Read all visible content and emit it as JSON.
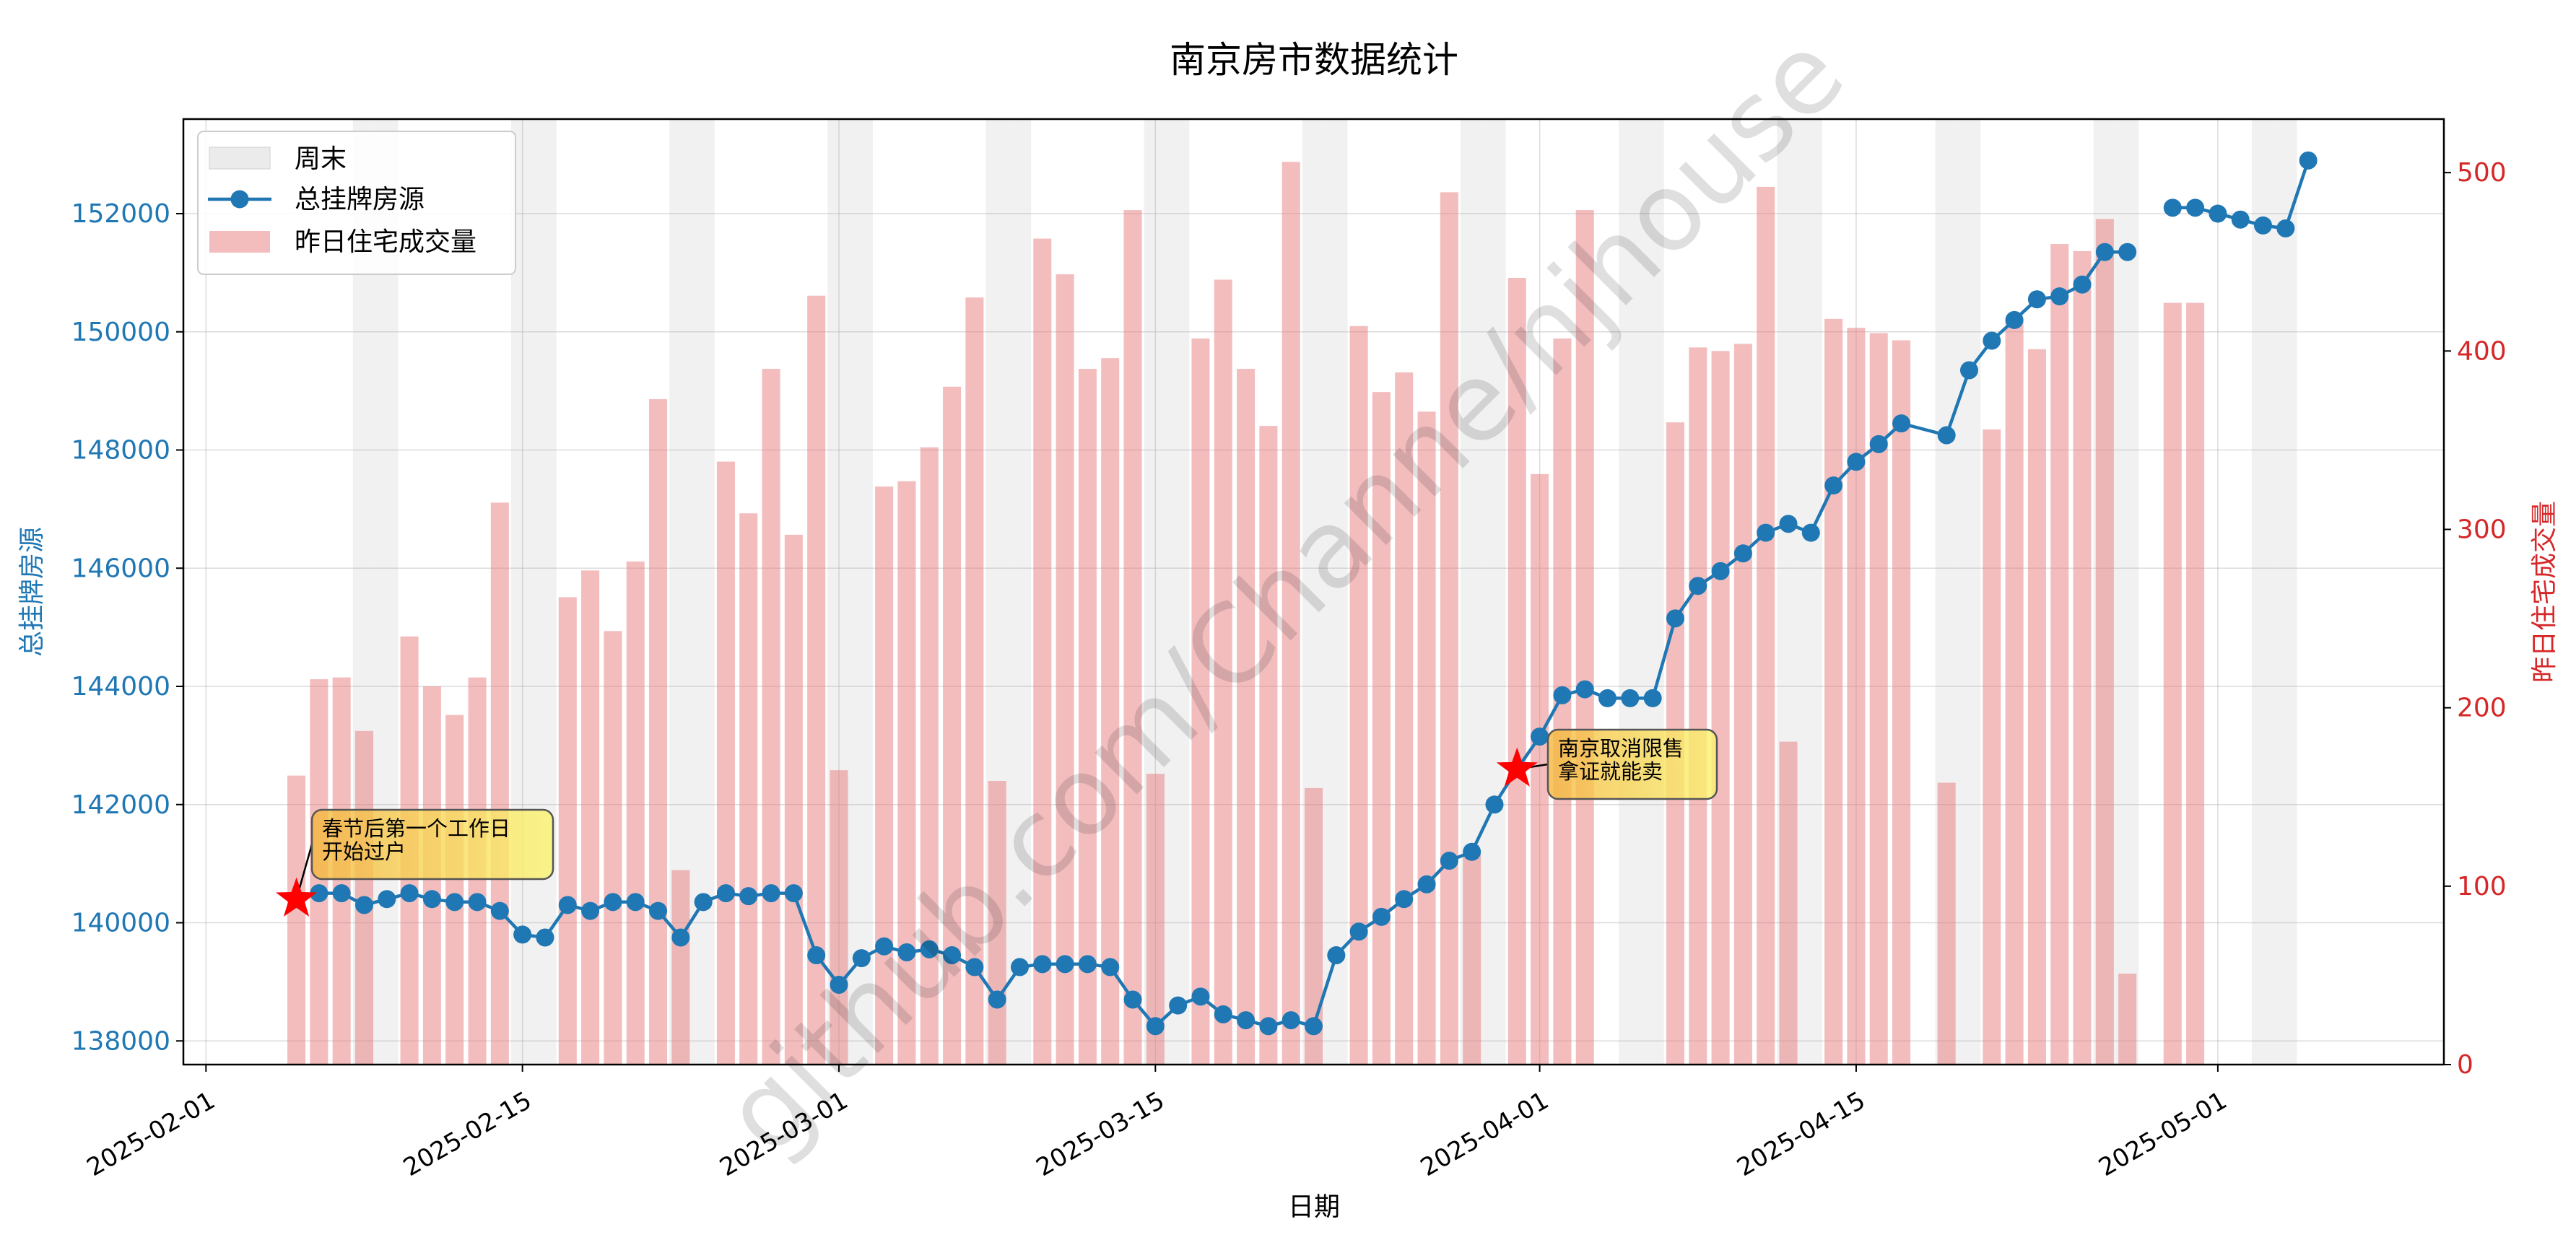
{
  "chart_data": {
    "type": "bar+line",
    "title": "南京房市数据统计",
    "xlabel": "日期",
    "ylabel_left": "总挂牌房源",
    "ylabel_right": "昨日住宅成交量",
    "x_range": [
      "2025-01-31",
      "2025-05-11"
    ],
    "ylim_left": [
      137600,
      153600
    ],
    "ylim_right": [
      0,
      530
    ],
    "x_ticks": [
      "2025-02-01",
      "2025-02-15",
      "2025-03-01",
      "2025-03-15",
      "2025-04-01",
      "2025-04-15",
      "2025-05-01"
    ],
    "y_ticks_left": [
      138000,
      140000,
      142000,
      144000,
      146000,
      148000,
      150000,
      152000
    ],
    "y_ticks_right": [
      0,
      100,
      200,
      300,
      400,
      500
    ],
    "grid": true,
    "legend_position": "top-left",
    "legend": [
      "周末",
      "总挂牌房源",
      "昨日住宅成交量"
    ],
    "weekend_dates": [
      "2025-02-08",
      "2025-02-09",
      "2025-02-15",
      "2025-02-16",
      "2025-02-22",
      "2025-02-23",
      "2025-03-01",
      "2025-03-02",
      "2025-03-08",
      "2025-03-09",
      "2025-03-15",
      "2025-03-16",
      "2025-03-22",
      "2025-03-23",
      "2025-03-29",
      "2025-03-30",
      "2025-04-05",
      "2025-04-06",
      "2025-04-12",
      "2025-04-13",
      "2025-04-19",
      "2025-04-20",
      "2025-04-26",
      "2025-04-27",
      "2025-05-03",
      "2025-05-04"
    ],
    "series": [
      {
        "name": "总挂牌房源",
        "axis": "left",
        "color": "#1f77b4",
        "segments": [
          {
            "x": [
              "2025-02-05",
              "2025-02-06",
              "2025-02-07",
              "2025-02-08",
              "2025-02-09",
              "2025-02-10",
              "2025-02-11",
              "2025-02-12",
              "2025-02-13",
              "2025-02-14",
              "2025-02-15",
              "2025-02-16",
              "2025-02-17",
              "2025-02-18",
              "2025-02-19",
              "2025-02-20",
              "2025-02-21",
              "2025-02-22",
              "2025-02-23",
              "2025-02-24",
              "2025-02-25",
              "2025-02-26",
              "2025-02-27",
              "2025-02-28",
              "2025-03-01",
              "2025-03-02",
              "2025-03-03",
              "2025-03-04",
              "2025-03-05",
              "2025-03-06",
              "2025-03-07",
              "2025-03-08",
              "2025-03-09",
              "2025-03-10",
              "2025-03-11",
              "2025-03-12",
              "2025-03-13",
              "2025-03-14",
              "2025-03-15",
              "2025-03-16",
              "2025-03-17",
              "2025-03-18",
              "2025-03-19",
              "2025-03-20",
              "2025-03-21",
              "2025-03-22",
              "2025-03-23",
              "2025-03-24",
              "2025-03-25",
              "2025-03-26",
              "2025-03-27",
              "2025-03-28",
              "2025-03-29",
              "2025-03-30",
              "2025-03-31",
              "2025-04-01",
              "2025-04-02",
              "2025-04-03",
              "2025-04-04",
              "2025-04-05",
              "2025-04-06",
              "2025-04-07",
              "2025-04-08",
              "2025-04-09",
              "2025-04-10",
              "2025-04-11",
              "2025-04-12",
              "2025-04-13",
              "2025-04-14",
              "2025-04-15",
              "2025-04-16",
              "2025-04-17",
              "2025-04-19",
              "2025-04-20",
              "2025-04-21",
              "2025-04-22",
              "2025-04-23",
              "2025-04-24",
              "2025-04-25",
              "2025-04-26",
              "2025-04-27"
            ],
            "y": [
              140400,
              140500,
              140500,
              140300,
              140400,
              140500,
              140400,
              140350,
              140350,
              140200,
              139800,
              139750,
              140300,
              140200,
              140350,
              140350,
              140200,
              139750,
              140350,
              140500,
              140450,
              140500,
              140500,
              139450,
              138950,
              139400,
              139600,
              139500,
              139550,
              139450,
              139250,
              138700,
              139250,
              139300,
              139300,
              139300,
              139250,
              138700,
              138250,
              138600,
              138750,
              138450,
              138350,
              138250,
              138350,
              138250,
              139450,
              139850,
              140100,
              140400,
              140650,
              141050,
              141200,
              142000,
              142600,
              143150,
              143850,
              143950,
              143800,
              143800,
              143800,
              145150,
              145700,
              145950,
              146250,
              146600,
              146750,
              146600,
              147400,
              147800,
              148100,
              148450,
              148250,
              149350,
              149850,
              150200,
              150550,
              150600,
              150800,
              151350,
              151350
            ]
          },
          {
            "x": [
              "2025-04-29",
              "2025-04-30",
              "2025-05-01",
              "2025-05-02",
              "2025-05-03",
              "2025-05-04",
              "2025-05-05"
            ],
            "y": [
              152100,
              152100,
              152000,
              151900,
              151800,
              151750,
              152900
            ]
          }
        ]
      },
      {
        "name": "昨日住宅成交量",
        "axis": "right",
        "color": "#f4bcbd",
        "x": [
          "2025-02-05",
          "2025-02-06",
          "2025-02-07",
          "2025-02-08",
          "2025-02-10",
          "2025-02-11",
          "2025-02-12",
          "2025-02-13",
          "2025-02-14",
          "2025-02-17",
          "2025-02-18",
          "2025-02-19",
          "2025-02-20",
          "2025-02-21",
          "2025-02-22",
          "2025-02-24",
          "2025-02-25",
          "2025-02-26",
          "2025-02-27",
          "2025-02-28",
          "2025-03-01",
          "2025-03-03",
          "2025-03-04",
          "2025-03-05",
          "2025-03-06",
          "2025-03-07",
          "2025-03-08",
          "2025-03-10",
          "2025-03-11",
          "2025-03-12",
          "2025-03-13",
          "2025-03-14",
          "2025-03-15",
          "2025-03-17",
          "2025-03-18",
          "2025-03-19",
          "2025-03-20",
          "2025-03-21",
          "2025-03-22",
          "2025-03-24",
          "2025-03-25",
          "2025-03-26",
          "2025-03-27",
          "2025-03-28",
          "2025-03-29",
          "2025-03-31",
          "2025-04-01",
          "2025-04-02",
          "2025-04-03",
          "2025-04-07",
          "2025-04-08",
          "2025-04-09",
          "2025-04-10",
          "2025-04-11",
          "2025-04-12",
          "2025-04-14",
          "2025-04-15",
          "2025-04-16",
          "2025-04-17",
          "2025-04-19",
          "2025-04-21",
          "2025-04-22",
          "2025-04-23",
          "2025-04-24",
          "2025-04-25",
          "2025-04-26",
          "2025-04-27",
          "2025-04-29",
          "2025-04-30"
        ],
        "values": [
          162,
          216,
          217,
          187,
          240,
          212,
          196,
          217,
          315,
          262,
          277,
          243,
          282,
          373,
          109,
          338,
          309,
          390,
          297,
          431,
          165,
          324,
          327,
          346,
          380,
          430,
          159,
          463,
          443,
          390,
          396,
          479,
          163,
          407,
          440,
          390,
          358,
          506,
          155,
          414,
          377,
          388,
          366,
          489,
          118,
          441,
          331,
          407,
          479,
          360,
          402,
          400,
          404,
          492,
          181,
          418,
          413,
          410,
          406,
          158,
          356,
          418,
          401,
          460,
          456,
          474,
          51,
          427,
          427
        ]
      }
    ],
    "annotations": [
      {
        "x": "2025-02-05",
        "y": 140400,
        "marker": "red-star",
        "text": [
          "春节后第一个工作日",
          "开始过户"
        ]
      },
      {
        "x": "2025-03-31",
        "y": 142600,
        "marker": "red-star",
        "text": [
          "南京取消限售",
          "拿证就能卖"
        ]
      }
    ],
    "watermark": "github.com/Channe/njhouse"
  }
}
